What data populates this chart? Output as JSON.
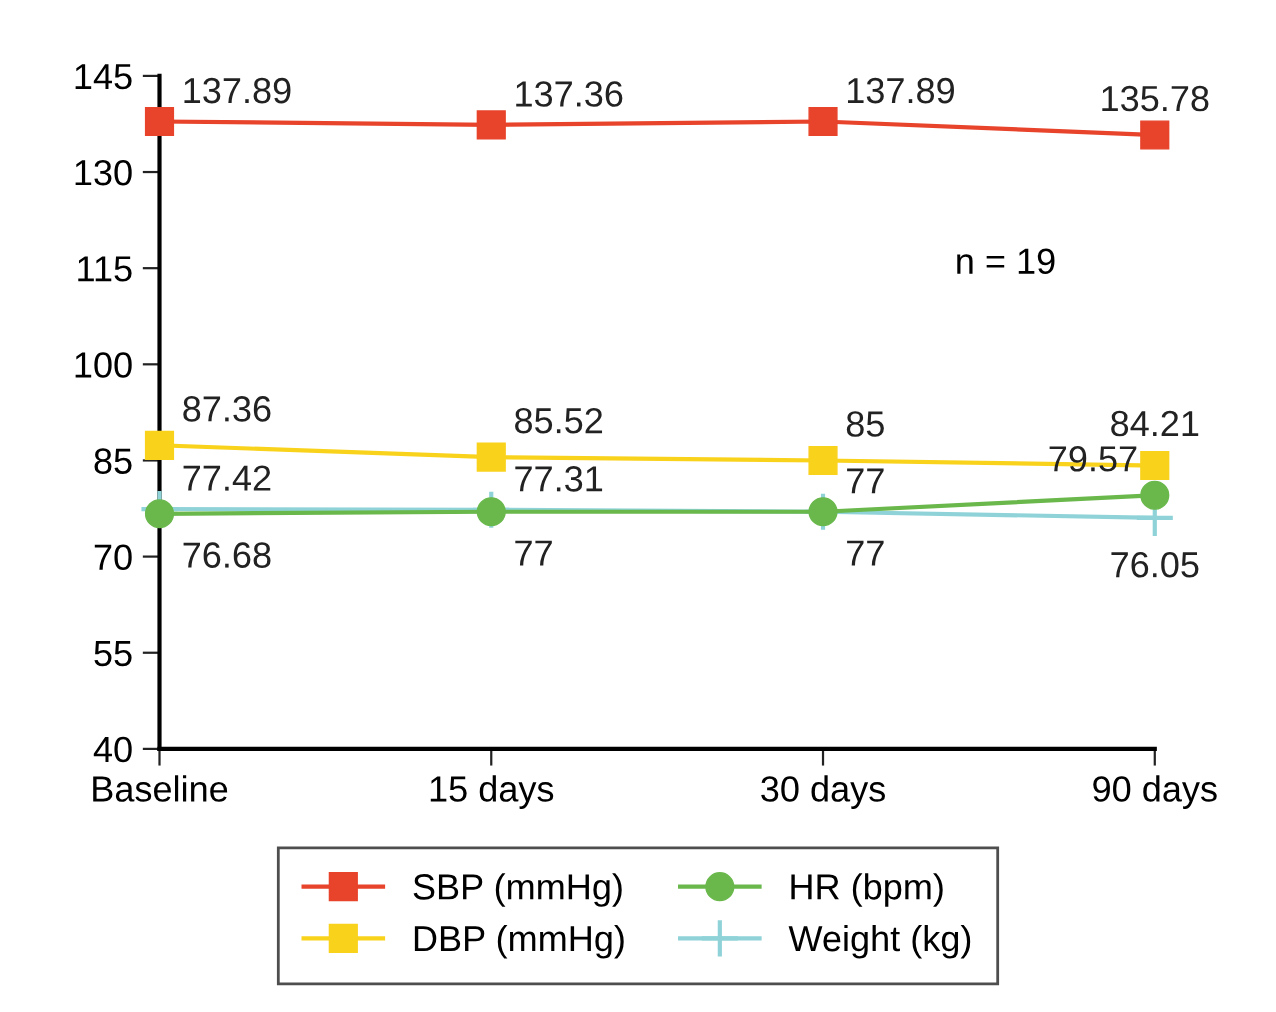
{
  "chart_data": {
    "type": "line",
    "categories": [
      "Baseline",
      "15 days",
      "30 days",
      "90 days"
    ],
    "series": [
      {
        "name": "SBP (mmHg)",
        "color": "#e8432b",
        "marker": "square",
        "values": [
          137.89,
          137.36,
          137.89,
          135.78
        ]
      },
      {
        "name": "DBP (mmHg)",
        "color": "#f9d21c",
        "marker": "square",
        "values": [
          87.36,
          85.52,
          85,
          84.21
        ]
      },
      {
        "name": "HR (bpm)",
        "color": "#6ab84c",
        "marker": "circle",
        "values": [
          76.68,
          77,
          77,
          79.57
        ]
      },
      {
        "name": "Weight (kg)",
        "color": "#8fd3d8",
        "marker": "cross",
        "values": [
          77.42,
          77.31,
          77,
          76.05
        ]
      }
    ],
    "ylim": [
      40,
      145
    ],
    "yticks": [
      40,
      55,
      70,
      85,
      100,
      115,
      130,
      145
    ],
    "annotations": [
      "n = 19"
    ],
    "data_labels": true,
    "grid": false,
    "legend": "bottom",
    "line_style": "solid"
  }
}
